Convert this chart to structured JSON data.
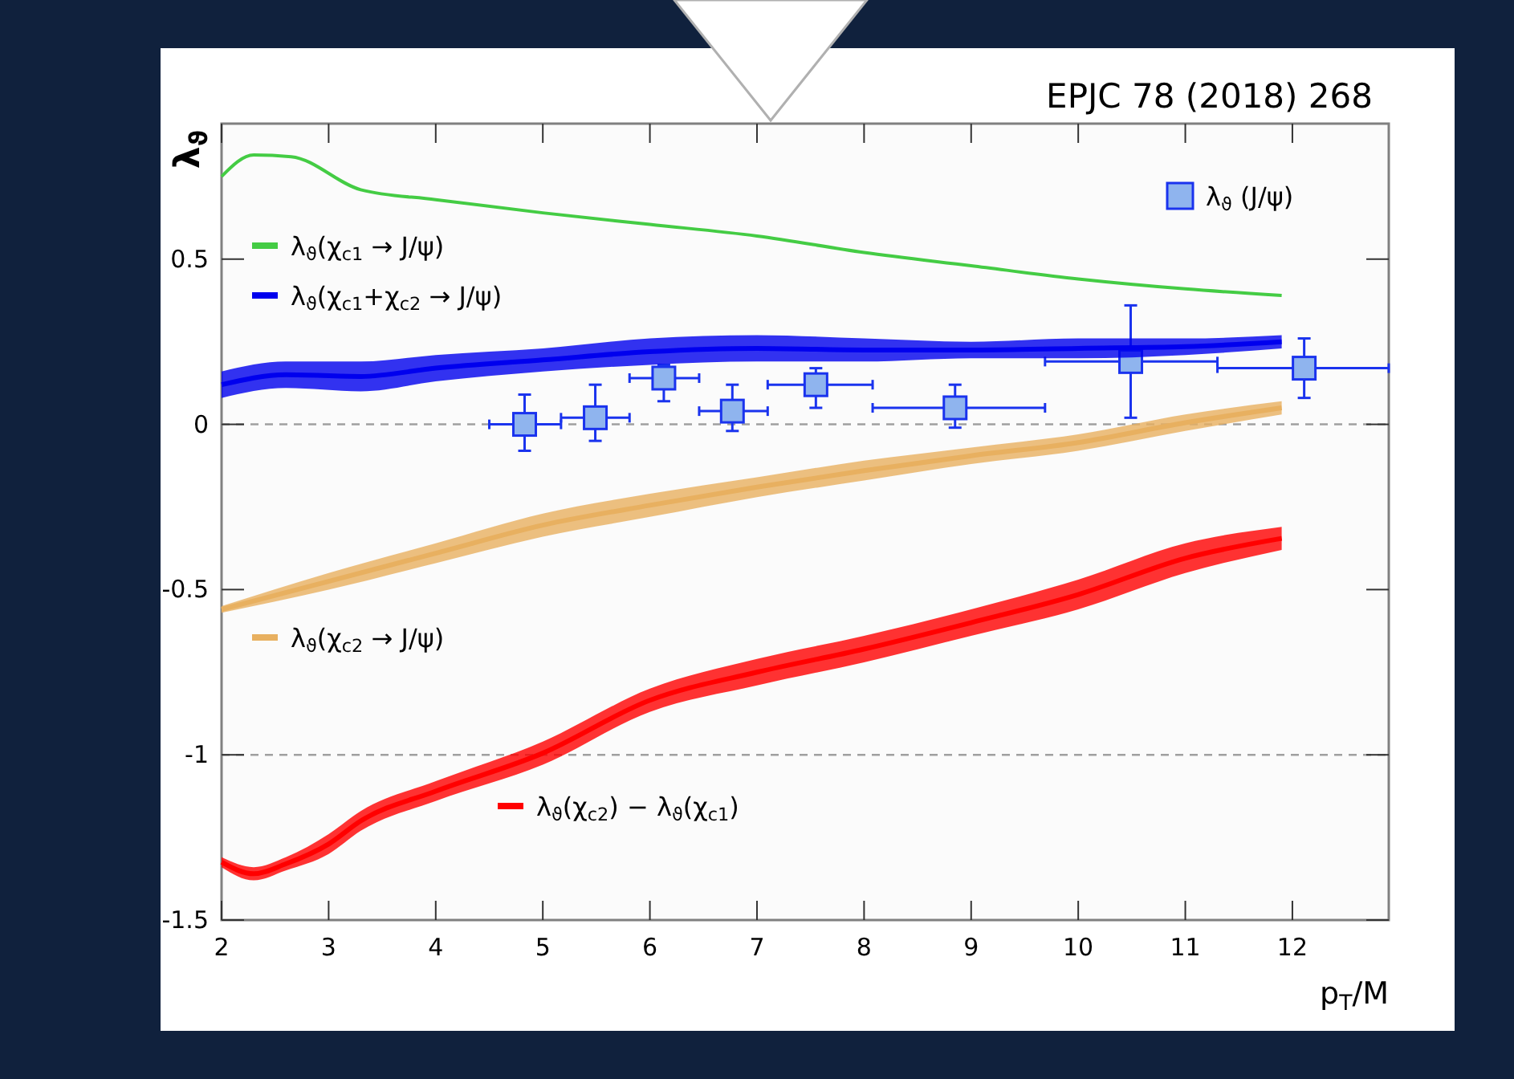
{
  "chart_data": {
    "type": "line",
    "xlabel": "p$_{T}$/M",
    "ylabel": "λ$_{ϑ}$",
    "annotations": [
      "EPJC 78 (2018) 268"
    ],
    "xlim": [
      2,
      12.9
    ],
    "ylim": [
      -1.5,
      0.91
    ],
    "xticks": [
      2,
      3,
      4,
      5,
      6,
      7,
      8,
      9,
      10,
      11,
      12
    ],
    "yticks": [
      -1.5,
      -1,
      -0.5,
      0,
      0.5
    ],
    "grid": false,
    "legend": "top left",
    "ref_lines": [
      {
        "axis": "y",
        "value": 0,
        "color": "#a0a0a0",
        "line_style": "dashed"
      },
      {
        "axis": "y",
        "value": -1,
        "color": "#a0a0a0",
        "line_style": "dashed"
      }
    ],
    "series": [
      {
        "name": "λ$_{ϑ}$ (J/ψ)",
        "type": "scatter",
        "marker": "square",
        "color": "#1a33ee",
        "x": [
          4.83,
          5.49,
          6.13,
          6.77,
          7.55,
          8.85,
          10.49,
          12.11
        ],
        "values": [
          0.0,
          0.02,
          0.14,
          0.04,
          0.12,
          0.05,
          0.19,
          0.17
        ],
        "errors": [
          [
            -0.08,
            0.09
          ],
          [
            -0.05,
            0.12
          ],
          [
            0.07,
            0.18
          ],
          [
            -0.02,
            0.12
          ],
          [
            0.05,
            0.17
          ],
          [
            -0.01,
            0.12
          ],
          [
            0.02,
            0.36
          ],
          [
            0.08,
            0.26
          ]
        ],
        "xerrors": [
          [
            4.5,
            5.17
          ],
          [
            5.17,
            5.81
          ],
          [
            5.81,
            6.46
          ],
          [
            6.46,
            7.1
          ],
          [
            7.1,
            8.08
          ],
          [
            8.08,
            9.69
          ],
          [
            9.69,
            11.3
          ],
          [
            11.3,
            12.9
          ]
        ]
      },
      {
        "name": "λ$_{ϑ}$(χ$_{c1}$ → J/ψ)",
        "color": "#44cc44",
        "x": [
          2,
          2.3,
          2.65,
          3.3,
          4,
          5,
          6,
          7,
          8,
          9,
          10,
          11,
          11.9
        ],
        "values": [
          0.75,
          0.815,
          0.81,
          0.71,
          0.68,
          0.64,
          0.605,
          0.57,
          0.52,
          0.48,
          0.44,
          0.41,
          0.39
        ]
      },
      {
        "name": "λ$_{ϑ}$(χ$_{c1}$+χ$_{c2}$ → J/ψ)",
        "color": "#0000ee",
        "x": [
          2,
          2.6,
          3.3,
          4,
          5,
          6,
          7,
          8,
          9,
          10,
          11,
          11.9
        ],
        "values": [
          0.12,
          0.15,
          0.145,
          0.17,
          0.195,
          0.22,
          0.23,
          0.225,
          0.225,
          0.23,
          0.235,
          0.25
        ],
        "lower": [
          0.08,
          0.11,
          0.1,
          0.13,
          0.16,
          0.18,
          0.19,
          0.19,
          0.2,
          0.2,
          0.21,
          0.23
        ],
        "upper": [
          0.16,
          0.19,
          0.19,
          0.21,
          0.23,
          0.26,
          0.27,
          0.26,
          0.25,
          0.26,
          0.26,
          0.27
        ]
      },
      {
        "name": "λ$_{ϑ}$(χ$_{c2}$ → J/ψ)",
        "color": "#e8b060",
        "x": [
          2,
          3,
          4,
          5,
          6,
          7,
          8,
          9,
          10,
          11,
          11.9
        ],
        "values": [
          -0.56,
          -0.475,
          -0.39,
          -0.305,
          -0.245,
          -0.19,
          -0.14,
          -0.095,
          -0.055,
          0.005,
          0.05
        ],
        "lower": [
          -0.57,
          -0.5,
          -0.42,
          -0.34,
          -0.28,
          -0.22,
          -0.17,
          -0.12,
          -0.08,
          -0.02,
          0.03
        ],
        "upper": [
          -0.55,
          -0.45,
          -0.36,
          -0.27,
          -0.21,
          -0.16,
          -0.11,
          -0.07,
          -0.03,
          0.03,
          0.07
        ]
      },
      {
        "name": "λ$_{ϑ}$(χ$_{c2}$) − λ$_{ϑ}$(χ$_{c1}$)",
        "color": "#ff0000",
        "x": [
          2,
          2.3,
          2.6,
          3,
          3.3,
          4,
          5,
          6,
          7,
          8,
          9,
          10,
          11,
          11.9
        ],
        "values": [
          -1.325,
          -1.36,
          -1.33,
          -1.27,
          -1.2,
          -1.11,
          -0.995,
          -0.835,
          -0.75,
          -0.68,
          -0.6,
          -0.515,
          -0.405,
          -0.345
        ],
        "lower": [
          -1.34,
          -1.38,
          -1.35,
          -1.3,
          -1.23,
          -1.14,
          -1.03,
          -0.87,
          -0.79,
          -0.72,
          -0.64,
          -0.56,
          -0.45,
          -0.38
        ],
        "upper": [
          -1.31,
          -1.34,
          -1.31,
          -1.24,
          -1.17,
          -1.08,
          -0.96,
          -0.8,
          -0.71,
          -0.64,
          -0.56,
          -0.47,
          -0.36,
          -0.31
        ]
      }
    ]
  }
}
